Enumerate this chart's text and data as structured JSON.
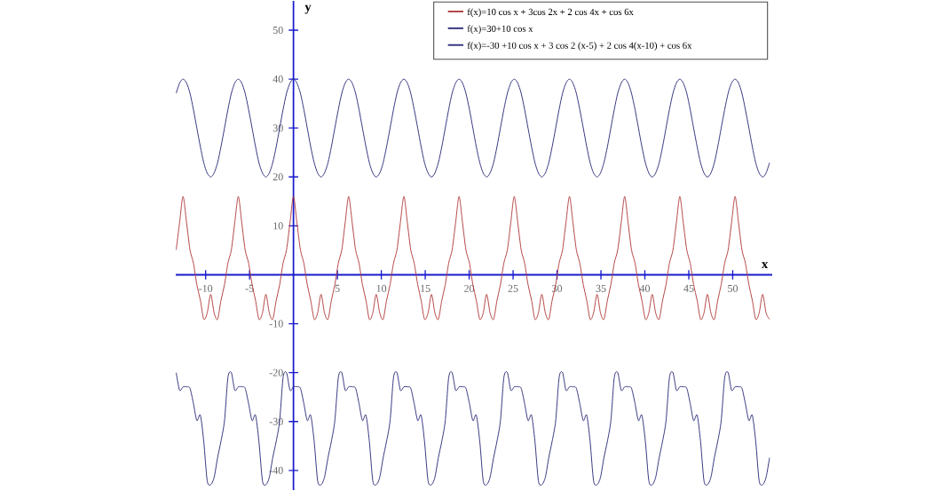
{
  "chart_data": {
    "type": "line",
    "xlabel": "x",
    "ylabel": "y",
    "x": [
      -13.35,
      -12.96,
      -12.57,
      -12.17,
      -11.78,
      -11.39,
      -11.0,
      -10.6,
      -10.21,
      -9.82,
      -9.42,
      -9.03,
      -8.64,
      -8.25,
      -7.85,
      -7.46,
      -7.07,
      -6.68,
      -6.28,
      -5.89,
      -5.5,
      -5.11,
      -4.71,
      -4.32,
      -3.93,
      -3.53,
      -3.14,
      -2.75,
      -2.36,
      -1.96,
      -1.57,
      -1.18,
      -0.79,
      -0.39,
      0,
      0.39,
      0.79,
      1.18,
      1.57,
      1.96,
      2.36,
      2.75,
      3.14,
      3.53,
      3.93,
      4.32,
      4.71,
      5.11,
      5.5,
      5.89,
      6.28,
      6.68,
      7.07,
      7.46,
      7.85,
      8.25,
      8.64,
      9.03,
      9.42,
      9.82,
      10.21,
      10.6,
      11.0,
      11.39,
      11.78,
      12.17,
      12.57,
      12.96,
      13.35,
      13.74,
      14.14,
      14.53,
      14.92,
      15.32,
      15.71,
      16.1,
      16.49,
      16.89,
      17.28,
      17.67,
      18.06,
      18.46,
      18.85,
      19.24,
      19.63,
      20.03,
      20.42,
      20.81,
      21.21,
      21.6,
      21.99,
      22.38,
      22.78,
      23.17,
      23.56,
      23.95,
      24.35,
      24.74,
      25.13,
      25.53,
      25.92,
      26.31,
      26.7,
      27.1,
      27.49,
      27.88,
      28.27,
      28.67,
      29.06,
      29.45,
      29.85,
      30.24,
      30.63,
      31.02,
      31.42,
      31.81,
      32.2,
      32.59,
      32.99,
      33.38,
      33.77,
      34.16,
      34.56,
      34.95,
      35.34,
      35.74,
      36.13,
      36.52,
      36.91,
      37.31,
      37.7,
      38.09,
      38.48,
      38.88,
      39.27,
      39.66,
      40.06,
      40.45,
      40.84,
      41.23,
      41.63,
      42.02,
      42.41,
      42.8,
      43.2,
      43.59,
      43.98,
      44.37,
      44.77,
      45.16,
      45.55,
      45.95,
      46.34,
      46.73,
      47.12,
      47.52,
      47.91,
      48.3,
      48.69,
      49.09,
      49.48,
      49.87,
      50.27,
      50.66,
      51.05,
      51.44,
      51.84,
      52.23,
      52.62,
      53.01,
      53.41,
      53.8,
      54.19
    ],
    "series": [
      {
        "name": "f(x)=10 cos x + 3cos 2x + 2 cos 4x + cos 6x",
        "color": "#b03a3a",
        "values": [
          5.1,
          10.7,
          16,
          10.7,
          5.1,
          2.4,
          -2,
          -5.2,
          -9.1,
          -7.8,
          -4,
          -7.8,
          -9.1,
          -5.2,
          -2,
          2.4,
          5.1,
          10.7,
          16,
          10.7,
          5.1,
          2.4,
          -2,
          -5.2,
          -9.1,
          -7.8,
          -4,
          -7.8,
          -9.1,
          -5.2,
          -2,
          2.4,
          5.1,
          10.7,
          16,
          10.7,
          5.1,
          2.4,
          -2,
          -5.2,
          -9.1,
          -7.8,
          -4,
          -7.8,
          -9.1,
          -5.2,
          -2,
          2.4,
          5.1,
          10.7,
          16,
          10.7,
          5.1,
          2.4,
          -2,
          -5.2,
          -9.1,
          -7.8,
          -4,
          -7.8,
          -9.1,
          -5.2,
          -2,
          2.4,
          5.1,
          10.7,
          16,
          10.7,
          5.1,
          2.4,
          -2,
          -5.2,
          -9.1,
          -7.8,
          -4,
          -7.8,
          -9.1,
          -5.2,
          -2,
          2.4,
          5.1,
          10.7,
          16,
          10.7,
          5.1,
          2.4,
          -2,
          -5.2,
          -9.1,
          -7.8,
          -4,
          -7.8,
          -9.1,
          -5.2,
          -2,
          2.4,
          5.1,
          10.7,
          16,
          10.7,
          5.1,
          2.4,
          -2,
          -5.2,
          -9.1,
          -7.8,
          -4,
          -7.8,
          -9.1,
          -5.2,
          -2,
          2.4,
          5.1,
          10.7,
          16,
          10.7,
          5.1,
          2.4,
          -2,
          -5.2,
          -9.1,
          -7.8,
          -4,
          -7.8,
          -9.1,
          -5.2,
          -2,
          2.4,
          5.1,
          10.7,
          16,
          10.7,
          5.1,
          2.4,
          -2,
          -5.2,
          -9.1,
          -7.8,
          -4,
          -7.8,
          -9.1,
          -5.2,
          -2,
          2.4,
          5.1,
          10.7,
          16,
          10.7,
          5.1,
          2.4,
          -2,
          -5.2,
          -9.1,
          -7.8,
          -4,
          -7.8,
          -9.1,
          -5.2,
          -2,
          2.4,
          5.1,
          10.7,
          16,
          10.7,
          5.1,
          2.4,
          -2,
          -5.2,
          -9.1,
          -7.8,
          -4,
          -7.8,
          -9.1
        ]
      },
      {
        "name": "f(x)=30+10 cos x",
        "color": "#2b2b7a",
        "values": [
          37.1,
          39.2,
          40,
          39.2,
          37.1,
          33.8,
          30,
          26.2,
          22.9,
          20.8,
          20,
          20.8,
          22.9,
          26.2,
          30,
          33.8,
          37.1,
          39.2,
          40,
          39.2,
          37.1,
          33.8,
          30,
          26.2,
          22.9,
          20.8,
          20,
          20.8,
          22.9,
          26.2,
          30,
          33.8,
          37.1,
          39.2,
          40,
          39.2,
          37.1,
          33.8,
          30,
          26.2,
          22.9,
          20.8,
          20,
          20.8,
          22.9,
          26.2,
          30,
          33.8,
          37.1,
          39.2,
          40,
          39.2,
          37.1,
          33.8,
          30,
          26.2,
          22.9,
          20.8,
          20,
          20.8,
          22.9,
          26.2,
          30,
          33.8,
          37.1,
          39.2,
          40,
          39.2,
          37.1,
          33.8,
          30,
          26.2,
          22.9,
          20.8,
          20,
          20.8,
          22.9,
          26.2,
          30,
          33.8,
          37.1,
          39.2,
          40,
          39.2,
          37.1,
          33.8,
          30,
          26.2,
          22.9,
          20.8,
          20,
          20.8,
          22.9,
          26.2,
          30,
          33.8,
          37.1,
          39.2,
          40,
          39.2,
          37.1,
          33.8,
          30,
          26.2,
          22.9,
          20.8,
          20,
          20.8,
          22.9,
          26.2,
          30,
          33.8,
          37.1,
          39.2,
          40,
          39.2,
          37.1,
          33.8,
          30,
          26.2,
          22.9,
          20.8,
          20,
          20.8,
          22.9,
          26.2,
          30,
          33.8,
          37.1,
          39.2,
          40,
          39.2,
          37.1,
          33.8,
          30,
          26.2,
          22.9,
          20.8,
          20,
          20.8,
          22.9,
          26.2,
          30,
          33.8,
          37.1,
          39.2,
          40,
          39.2,
          37.1,
          33.8,
          30,
          26.2,
          22.9,
          20.8,
          20,
          20.8,
          22.9,
          26.2,
          30,
          33.8,
          37.1,
          39.2,
          40,
          39.2,
          37.1,
          33.8,
          30,
          26.2,
          22.9,
          20.8,
          20,
          20.8,
          22.9
        ]
      },
      {
        "name": "f(x)=-30 +10 cos x + 3 cos 2 (x-5) + 2 cos 4(x-10) + cos 6x",
        "color": "#2b2b7a",
        "values": [
          -20,
          -23.6,
          -22.9,
          -22.9,
          -23.2,
          -26.3,
          -29.8,
          -28.7,
          -34.1,
          -42.1,
          -42.9,
          -41.4,
          -37.4,
          -34,
          -29.8,
          -21,
          -20,
          -23.6,
          -22.9,
          -22.9,
          -23.2,
          -26.3,
          -29.8,
          -28.7,
          -34.1,
          -42.1,
          -42.9,
          -41.4,
          -37.4,
          -34,
          -29.8,
          -21,
          -20,
          -23.6,
          -22.9,
          -22.9,
          -23.2,
          -26.3,
          -29.8,
          -28.7,
          -34.1,
          -42.1,
          -42.9,
          -41.4,
          -37.4,
          -34,
          -29.8,
          -21,
          -20,
          -23.6,
          -22.9,
          -22.9,
          -23.2,
          -26.3,
          -29.8,
          -28.7,
          -34.1,
          -42.1,
          -42.9,
          -41.4,
          -37.4,
          -34,
          -29.8,
          -21,
          -20,
          -23.6,
          -22.9,
          -22.9,
          -23.2,
          -26.3,
          -29.8,
          -28.7,
          -34.1,
          -42.1,
          -42.9,
          -41.4,
          -37.4,
          -34,
          -29.8,
          -21,
          -20,
          -23.6,
          -22.9,
          -22.9,
          -23.2,
          -26.3,
          -29.8,
          -28.7,
          -34.1,
          -42.1,
          -42.9,
          -41.4,
          -37.4,
          -34,
          -29.8,
          -21,
          -20,
          -23.6,
          -22.9,
          -22.9,
          -23.2,
          -26.3,
          -29.8,
          -28.7,
          -34.1,
          -42.1,
          -42.9,
          -41.4,
          -37.4,
          -34,
          -29.8,
          -21,
          -20,
          -23.6,
          -22.9,
          -22.9,
          -23.2,
          -26.3,
          -29.8,
          -28.7,
          -34.1,
          -42.1,
          -42.9,
          -41.4,
          -37.4,
          -34,
          -29.8,
          -21,
          -20,
          -23.6,
          -22.9,
          -22.9,
          -23.2,
          -26.3,
          -29.8,
          -28.7,
          -34.1,
          -42.1,
          -42.9,
          -41.4,
          -37.4,
          -34,
          -29.8,
          -21,
          -20,
          -23.6,
          -22.9,
          -22.9,
          -23.2,
          -26.3,
          -29.8,
          -28.7,
          -34.1,
          -42.1,
          -42.9,
          -41.4,
          -37.4,
          -34,
          -29.8,
          -21,
          -20,
          -23.6,
          -22.9,
          -22.9,
          -23.2,
          -26.3,
          -29.8,
          -28.7,
          -34.1,
          -42.1,
          -42.9,
          -41.4,
          -37.4
        ]
      }
    ],
    "xlim": [
      -13.4,
      54.5
    ],
    "ylim": [
      -44,
      56
    ],
    "xticks": [
      -10,
      -5,
      5,
      10,
      15,
      20,
      25,
      30,
      35,
      40,
      45,
      50
    ],
    "yticks": [
      -40,
      -30,
      -20,
      -10,
      10,
      20,
      30,
      40,
      50
    ],
    "legend": "top right",
    "grid": false,
    "marker": "none",
    "line_style": "solid"
  }
}
